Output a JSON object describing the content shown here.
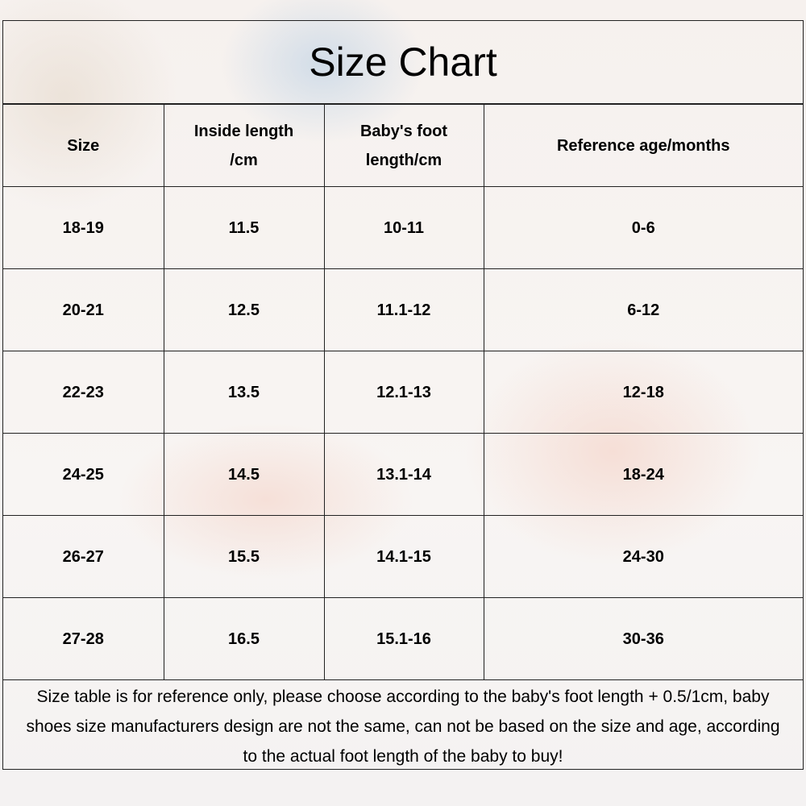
{
  "title": "Size Chart",
  "headers": [
    "Size",
    "Inside length /cm",
    "Baby's foot length/cm",
    "Reference age/months"
  ],
  "rows": [
    [
      "18-19",
      "11.5",
      "10-11",
      "0-6"
    ],
    [
      "20-21",
      "12.5",
      "11.1-12",
      "6-12"
    ],
    [
      "22-23",
      "13.5",
      "12.1-13",
      "12-18"
    ],
    [
      "24-25",
      "14.5",
      "13.1-14",
      "18-24"
    ],
    [
      "26-27",
      "15.5",
      "14.1-15",
      "24-30"
    ],
    [
      "27-28",
      "16.5",
      "15.1-16",
      "30-36"
    ]
  ],
  "note": "Size table is for reference only, please choose according to the baby's foot length + 0.5/1cm, baby shoes size manufacturers design are not the same, can not be based on the size and age, according to the actual foot length of the baby to buy!"
}
